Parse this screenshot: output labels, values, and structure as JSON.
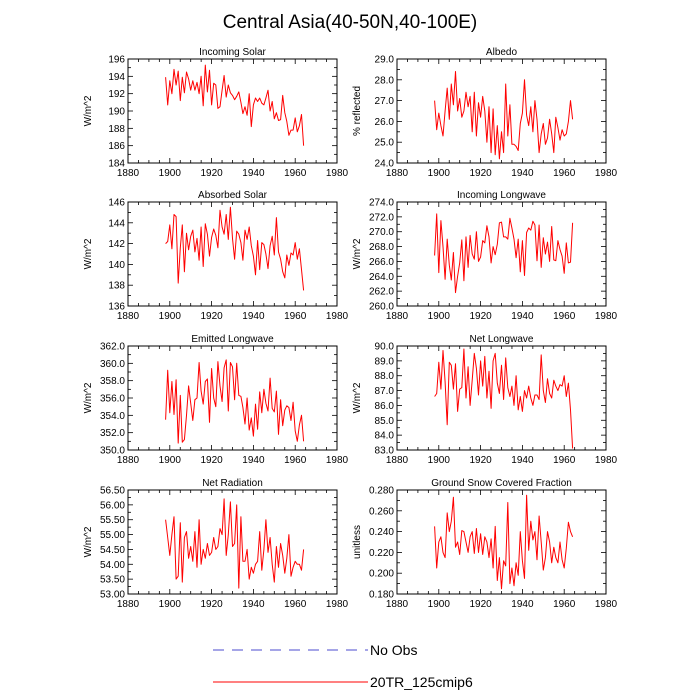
{
  "title": "Central Asia(40-50N,40-100E)",
  "legend": [
    {
      "label": "No Obs",
      "color": "#4b4bcf",
      "style": "dashed"
    },
    {
      "label": "20TR_125cmip6",
      "color": "#ff0000",
      "style": "solid"
    }
  ],
  "chart_data": [
    {
      "type": "line",
      "title": "Incoming Solar",
      "ylabel": "W/m^2",
      "xlim": [
        1880,
        1980
      ],
      "xticks": [
        1880,
        1900,
        1920,
        1940,
        1960,
        1980
      ],
      "ylim": [
        184,
        196
      ],
      "yticks": [
        "184",
        "186",
        "188",
        "190",
        "192",
        "194",
        "196"
      ],
      "series": [
        {
          "name": "20TR_125cmip6",
          "color": "#ff0000",
          "x_start": 1898,
          "values": [
            193.9,
            190.7,
            193.5,
            192.0,
            194.8,
            193.0,
            194.6,
            191.2,
            193.9,
            192.1,
            194.5,
            193.7,
            192.4,
            193.5,
            192.4,
            193.3,
            192.0,
            194.0,
            190.6,
            195.3,
            192.2,
            194.7,
            190.7,
            193.2,
            193.0,
            190.3,
            190.5,
            192.4,
            194.1,
            191.6,
            193.0,
            192.1,
            191.8,
            191.3,
            191.7,
            192.2,
            191.0,
            189.7,
            190.5,
            189.5,
            192.0,
            188.2,
            190.7,
            191.5,
            191.1,
            191.5,
            190.9,
            190.7,
            191.5,
            192.4,
            190.0,
            191.1,
            189.1,
            189.8,
            188.9,
            189.0,
            191.8,
            189.8,
            188.8,
            187.2,
            187.8,
            187.8,
            189.2,
            187.6,
            188.3,
            189.6,
            186.0
          ]
        }
      ]
    },
    {
      "type": "line",
      "title": "Albedo",
      "ylabel": "% reflected",
      "xlim": [
        1880,
        1980
      ],
      "xticks": [
        1880,
        1900,
        1920,
        1940,
        1960,
        1980
      ],
      "ylim": [
        24,
        29
      ],
      "yticks": [
        "24.0",
        "25.0",
        "26.0",
        "27.0",
        "28.0",
        "29.0"
      ],
      "series": [
        {
          "name": "20TR_125cmip6",
          "color": "#ff0000",
          "x_start": 1898,
          "values": [
            27.0,
            25.6,
            26.4,
            25.8,
            25.3,
            26.5,
            27.6,
            26.1,
            27.8,
            26.8,
            28.4,
            26.5,
            27.1,
            26.2,
            26.5,
            27.4,
            26.7,
            27.2,
            25.5,
            27.4,
            25.3,
            26.9,
            26.2,
            27.2,
            26.5,
            25.0,
            26.7,
            24.5,
            26.6,
            24.4,
            25.8,
            24.2,
            25.5,
            24.5,
            27.8,
            25.3,
            26.8,
            24.9,
            24.9,
            24.8,
            24.6,
            25.9,
            26.4,
            28.0,
            26.3,
            25.8,
            26.7,
            25.5,
            27.0,
            26.1,
            24.5,
            25.4,
            25.9,
            24.9,
            25.2,
            26.1,
            25.4,
            24.5,
            26.2,
            25.7,
            25.1,
            25.6,
            25.3,
            25.4,
            26.0,
            27.0,
            26.1
          ]
        }
      ]
    },
    {
      "type": "line",
      "title": "Absorbed Solar",
      "ylabel": "W/m^2",
      "xlim": [
        1880,
        1980
      ],
      "xticks": [
        1880,
        1900,
        1920,
        1940,
        1960,
        1980
      ],
      "ylim": [
        136,
        146
      ],
      "yticks": [
        "136",
        "138",
        "140",
        "142",
        "144",
        "146"
      ],
      "series": [
        {
          "name": "20TR_125cmip6",
          "color": "#ff0000",
          "x_start": 1898,
          "values": [
            142.0,
            142.2,
            143.8,
            141.5,
            144.8,
            144.6,
            138.2,
            141.6,
            143.8,
            139.3,
            143.0,
            141.4,
            142.7,
            143.3,
            141.2,
            142.5,
            140.4,
            143.6,
            139.8,
            143.9,
            142.9,
            140.8,
            142.6,
            143.4,
            142.8,
            141.6,
            145.2,
            143.6,
            142.9,
            144.8,
            142.4,
            145.5,
            142.5,
            140.5,
            143.2,
            142.9,
            142.1,
            140.4,
            143.3,
            142.4,
            143.6,
            141.8,
            140.8,
            139.0,
            142.3,
            139.5,
            142.1,
            141.9,
            141.0,
            139.6,
            141.8,
            142.7,
            140.9,
            144.5,
            141.2,
            140.5,
            139.3,
            138.7,
            140.9,
            139.9,
            141.1,
            140.9,
            142.1,
            140.5,
            141.5,
            139.5,
            137.5
          ]
        }
      ]
    },
    {
      "type": "line",
      "title": "Incoming Longwave",
      "ylabel": "W/m^2",
      "xlim": [
        1880,
        1980
      ],
      "xticks": [
        1880,
        1900,
        1920,
        1940,
        1960,
        1980
      ],
      "ylim": [
        260,
        274
      ],
      "yticks": [
        "260.0",
        "262.0",
        "264.0",
        "266.0",
        "268.0",
        "270.0",
        "272.0",
        "274.0"
      ],
      "series": [
        {
          "name": "20TR_125cmip6",
          "color": "#ff0000",
          "x_start": 1898,
          "values": [
            266.8,
            272.4,
            264.5,
            271.5,
            268.0,
            263.6,
            269.0,
            265.5,
            263.5,
            267.2,
            261.8,
            264.0,
            265.8,
            268.9,
            263.4,
            269.3,
            265.2,
            269.5,
            267.0,
            266.3,
            270.0,
            266.0,
            266.6,
            268.8,
            268.5,
            270.8,
            269.3,
            265.8,
            268.0,
            266.9,
            268.3,
            271.2,
            271.3,
            269.3,
            269.3,
            269.0,
            271.8,
            270.5,
            269.0,
            266.5,
            269.0,
            264.6,
            268.8,
            264.1,
            269.9,
            270.5,
            270.2,
            271.4,
            270.9,
            266.1,
            270.9,
            265.2,
            269.2,
            267.0,
            268.6,
            266.0,
            270.7,
            266.2,
            266.1,
            268.8,
            267.6,
            266.7,
            264.4,
            268.5,
            265.8,
            265.9,
            271.2
          ]
        }
      ]
    },
    {
      "type": "line",
      "title": "Emitted Longwave",
      "ylabel": "W/m^2",
      "xlim": [
        1880,
        1980
      ],
      "xticks": [
        1880,
        1900,
        1920,
        1940,
        1960,
        1980
      ],
      "ylim": [
        350,
        362
      ],
      "yticks": [
        "350.0",
        "352.0",
        "354.0",
        "356.0",
        "358.0",
        "360.0",
        "362.0"
      ],
      "series": [
        {
          "name": "20TR_125cmip6",
          "color": "#ff0000",
          "x_start": 1898,
          "values": [
            353.5,
            359.2,
            354.3,
            357.9,
            354.1,
            358.1,
            350.8,
            356.3,
            350.9,
            351.2,
            354.0,
            357.4,
            355.4,
            353.4,
            355.8,
            356.0,
            360.1,
            356.8,
            355.3,
            357.9,
            358.2,
            353.2,
            359.4,
            356.0,
            355.0,
            360.2,
            357.4,
            355.6,
            359.5,
            360.4,
            354.5,
            360.1,
            359.6,
            355.8,
            360.0,
            356.3,
            356.2,
            354.9,
            353.0,
            356.0,
            352.3,
            353.7,
            351.6,
            355.3,
            352.4,
            356.7,
            354.3,
            357.0,
            355.4,
            354.5,
            358.3,
            354.8,
            354.4,
            356.8,
            351.8,
            355.8,
            352.8,
            354.6,
            355.1,
            354.9,
            353.4,
            355.5,
            352.2,
            351.0,
            352.9,
            354.0,
            351.0
          ]
        }
      ]
    },
    {
      "type": "line",
      "title": "Net Longwave",
      "ylabel": "W/m^2",
      "xlim": [
        1880,
        1980
      ],
      "xticks": [
        1880,
        1900,
        1920,
        1940,
        1960,
        1980
      ],
      "ylim": [
        83,
        90
      ],
      "yticks": [
        "83.0",
        "84.0",
        "85.0",
        "86.0",
        "87.0",
        "88.0",
        "89.0",
        "90.0"
      ],
      "series": [
        {
          "name": "20TR_125cmip6",
          "color": "#ff0000",
          "x_start": 1898,
          "values": [
            86.6,
            86.8,
            88.9,
            87.1,
            89.7,
            87.6,
            84.7,
            88.9,
            88.7,
            87.1,
            88.8,
            85.6,
            87.1,
            87.2,
            89.8,
            86.5,
            88.6,
            86.0,
            87.7,
            89.5,
            88.5,
            86.7,
            89.0,
            87.3,
            89.3,
            86.5,
            88.3,
            85.8,
            89.0,
            89.5,
            87.5,
            86.8,
            88.7,
            86.4,
            89.2,
            87.2,
            86.6,
            87.3,
            86.0,
            88.0,
            85.7,
            86.6,
            85.6,
            87.0,
            86.5,
            87.3,
            86.5,
            86.0,
            86.7,
            86.7,
            86.4,
            89.4,
            87.0,
            86.2,
            87.8,
            86.8,
            86.5,
            87.7,
            87.3,
            87.0,
            87.4,
            87.3,
            88.0,
            86.6,
            87.5,
            85.7,
            83.1
          ]
        }
      ]
    },
    {
      "type": "line",
      "title": "Net Radiation",
      "ylabel": "W/m^2",
      "xlim": [
        1880,
        1980
      ],
      "xticks": [
        1880,
        1900,
        1920,
        1940,
        1960,
        1980
      ],
      "ylim": [
        53,
        56.5
      ],
      "yticks": [
        "53.00",
        "53.50",
        "54.00",
        "54.50",
        "55.00",
        "55.50",
        "56.00",
        "56.50"
      ],
      "series": [
        {
          "name": "20TR_125cmip6",
          "color": "#ff0000",
          "x_start": 1898,
          "values": [
            55.5,
            54.9,
            54.3,
            55.0,
            55.6,
            53.5,
            53.6,
            55.4,
            53.4,
            54.9,
            55.1,
            54.2,
            54.6,
            54.1,
            55.1,
            53.9,
            55.5,
            54.0,
            54.5,
            54.2,
            54.7,
            54.3,
            54.4,
            54.9,
            54.5,
            54.6,
            55.2,
            55.0,
            56.2,
            54.3,
            55.0,
            56.1,
            54.6,
            54.7,
            56.0,
            53.2,
            55.6,
            54.1,
            54.1,
            54.5,
            53.5,
            53.9,
            53.7,
            54.0,
            54.1,
            55.1,
            53.8,
            54.5,
            55.5,
            54.4,
            54.9,
            54.0,
            53.4,
            54.6,
            53.9,
            54.7,
            54.3,
            53.7,
            54.2,
            55.0,
            53.6,
            53.9,
            54.1,
            54.0,
            54.0,
            53.8,
            54.5
          ]
        }
      ]
    },
    {
      "type": "line",
      "title": "Ground Snow Covered Fraction",
      "ylabel": "unitless",
      "xlim": [
        1880,
        1980
      ],
      "xticks": [
        1880,
        1900,
        1920,
        1940,
        1960,
        1980
      ],
      "ylim": [
        0.18,
        0.28
      ],
      "yticks": [
        "0.180",
        "0.200",
        "0.220",
        "0.240",
        "0.260",
        "0.280"
      ],
      "series": [
        {
          "name": "20TR_125cmip6",
          "color": "#ff0000",
          "x_start": 1898,
          "values": [
            0.245,
            0.205,
            0.23,
            0.235,
            0.22,
            0.215,
            0.258,
            0.24,
            0.25,
            0.273,
            0.225,
            0.23,
            0.218,
            0.241,
            0.24,
            0.23,
            0.22,
            0.235,
            0.24,
            0.219,
            0.243,
            0.22,
            0.238,
            0.218,
            0.235,
            0.23,
            0.215,
            0.233,
            0.205,
            0.245,
            0.193,
            0.215,
            0.185,
            0.212,
            0.207,
            0.268,
            0.19,
            0.205,
            0.188,
            0.21,
            0.198,
            0.24,
            0.212,
            0.195,
            0.275,
            0.222,
            0.25,
            0.232,
            0.24,
            0.213,
            0.255,
            0.23,
            0.203,
            0.215,
            0.24,
            0.23,
            0.21,
            0.225,
            0.215,
            0.21,
            0.23,
            0.213,
            0.205,
            0.224,
            0.249,
            0.24,
            0.235
          ]
        }
      ]
    }
  ]
}
